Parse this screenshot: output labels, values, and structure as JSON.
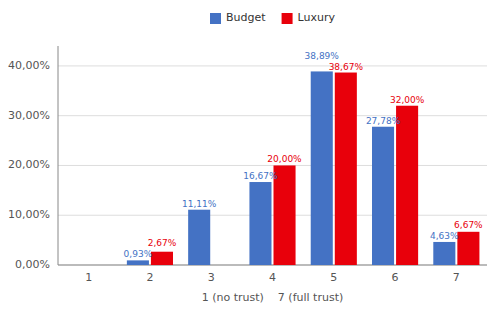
{
  "chart_data": {
    "type": "bar",
    "xlabel": "1 (no trust)    7 (full trust)",
    "categories": [
      "1",
      "2",
      "3",
      "4",
      "5",
      "6",
      "7"
    ],
    "series": [
      {
        "name": "Budget",
        "color": "#4472C4",
        "values": [
          0.0,
          0.93,
          11.11,
          16.67,
          38.89,
          27.78,
          4.63
        ],
        "value_labels": [
          null,
          "0,93%",
          "11,11%",
          "16,67%",
          "38,89%",
          "27,78%",
          "4,63%"
        ]
      },
      {
        "name": "Luxury",
        "color": "#E8000B",
        "values": [
          0.0,
          2.67,
          0.0,
          20.0,
          38.67,
          32.0,
          6.67
        ],
        "value_labels": [
          null,
          "2,67%",
          null,
          "20,00%",
          "38,67%",
          "32,00%",
          "6,67%"
        ]
      }
    ],
    "ylim": [
      0,
      44
    ],
    "yticks": [
      {
        "value": 0,
        "label": "0,00%"
      },
      {
        "value": 10,
        "label": "10,00%"
      },
      {
        "value": 20,
        "label": "20,00%"
      },
      {
        "value": 30,
        "label": "30,00%"
      },
      {
        "value": 40,
        "label": "40,00%"
      }
    ],
    "grid": true,
    "legend": "top"
  }
}
